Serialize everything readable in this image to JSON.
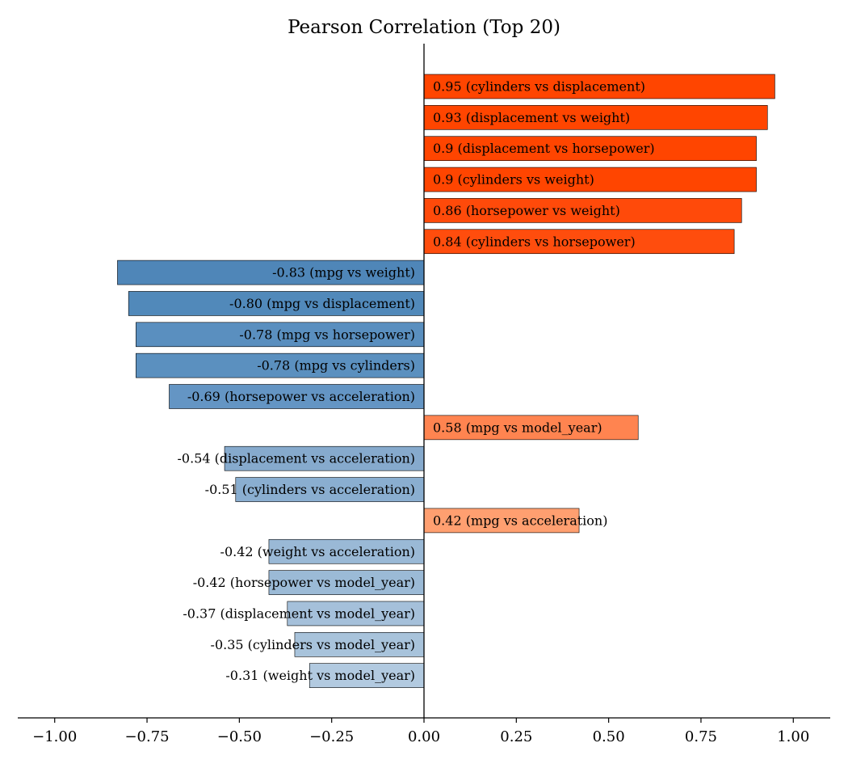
{
  "chart_data": {
    "type": "bar",
    "orientation": "horizontal",
    "title": "Pearson Correlation (Top 20)",
    "xlabel": "",
    "ylabel": "",
    "xlim": [
      -1.1,
      1.1
    ],
    "x_ticks": [
      -1.0,
      -0.75,
      -0.5,
      -0.25,
      0.0,
      0.25,
      0.5,
      0.75,
      1.0
    ],
    "x_tick_labels": [
      "−1.00",
      "−0.75",
      "−0.50",
      "−0.25",
      "0.00",
      "0.25",
      "0.50",
      "0.75",
      "1.00"
    ],
    "grid": false,
    "categories": [
      "cylinders vs displacement",
      "displacement vs weight",
      "displacement vs horsepower",
      "cylinders vs weight",
      "horsepower vs weight",
      "cylinders vs horsepower",
      "mpg vs weight",
      "mpg vs displacement",
      "mpg vs horsepower",
      "mpg vs cylinders",
      "horsepower vs acceleration",
      "mpg vs model_year",
      "displacement vs acceleration",
      "cylinders vs acceleration",
      "mpg vs acceleration",
      "weight vs acceleration",
      "horsepower vs model_year",
      "displacement vs model_year",
      "cylinders vs model_year",
      "weight vs model_year"
    ],
    "values": [
      0.95,
      0.93,
      0.9,
      0.9,
      0.86,
      0.84,
      -0.83,
      -0.8,
      -0.78,
      -0.78,
      -0.69,
      0.58,
      -0.54,
      -0.51,
      0.42,
      -0.42,
      -0.42,
      -0.37,
      -0.35,
      -0.31
    ],
    "bar_labels": [
      "0.95  (cylinders vs displacement)",
      "0.93  (displacement vs weight)",
      "0.9  (displacement vs horsepower)",
      "0.9  (cylinders vs weight)",
      "0.86  (horsepower vs weight)",
      "0.84  (cylinders vs horsepower)",
      "-0.83 (mpg vs weight)",
      "-0.80 (mpg vs displacement)",
      "-0.78 (mpg vs horsepower)",
      "-0.78 (mpg vs cylinders)",
      "-0.69 (horsepower vs acceleration)",
      "0.58  (mpg vs model_year)",
      "-0.54 (displacement vs acceleration)",
      "-0.51 (cylinders vs acceleration)",
      "0.42  (mpg vs acceleration)",
      "-0.42 (weight vs acceleration)",
      "-0.42 (horsepower vs model_year)",
      "-0.37 (displacement vs model_year)",
      "-0.35 (cylinders vs model_year)",
      "-0.31 (weight vs model_year)"
    ],
    "colors": [
      "#ff4500",
      "#ff4500",
      "#ff4500",
      "#ff4500",
      "#ff4a0a",
      "#ff4d0d",
      "#4f86b8",
      "#5189ba",
      "#5a8fbf",
      "#5b90bf",
      "#6495c4",
      "#ff8450",
      "#86aacd",
      "#8aaed0",
      "#ff9f70",
      "#9ab9d6",
      "#9bbad6",
      "#a5c0da",
      "#a8c3db",
      "#b2cae0"
    ]
  }
}
